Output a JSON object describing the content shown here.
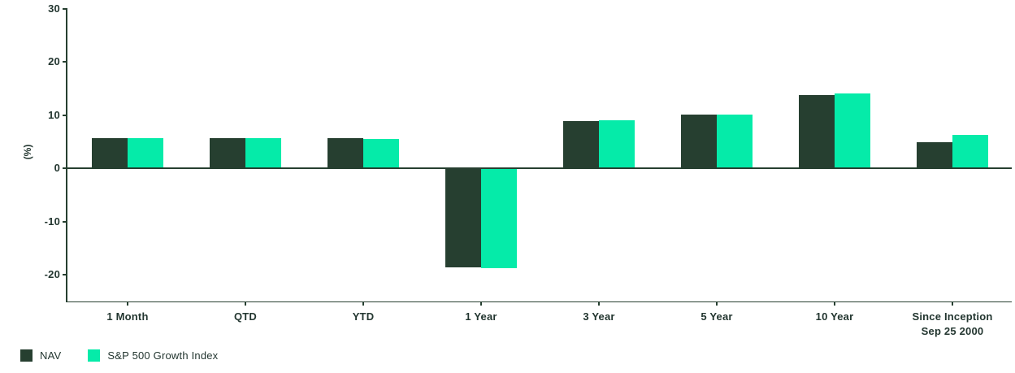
{
  "chart_data": {
    "type": "bar",
    "title": "",
    "ylabel": "(%)",
    "xlabel": "",
    "grid": false,
    "legend_position": "bottom-left",
    "ylim": [
      -25,
      30
    ],
    "yticks": [
      30,
      20,
      10,
      0,
      -10,
      -20
    ],
    "categories": [
      {
        "label": "1 Month",
        "sublabel": ""
      },
      {
        "label": "QTD",
        "sublabel": ""
      },
      {
        "label": "YTD",
        "sublabel": ""
      },
      {
        "label": "1 Year",
        "sublabel": ""
      },
      {
        "label": "3 Year",
        "sublabel": ""
      },
      {
        "label": "5 Year",
        "sublabel": ""
      },
      {
        "label": "10 Year",
        "sublabel": ""
      },
      {
        "label": "Since Inception",
        "sublabel": "Sep 25 2000"
      }
    ],
    "series": [
      {
        "name": "NAV",
        "color": "#263f30",
        "values": [
          5.5,
          5.5,
          5.5,
          -18.5,
          8.7,
          9.9,
          13.6,
          4.7
        ]
      },
      {
        "name": "S&P 500 Growth Index",
        "color": "#05eba9",
        "values": [
          5.5,
          5.5,
          5.4,
          -18.7,
          8.9,
          10.0,
          13.9,
          6.1
        ]
      }
    ]
  },
  "colors": {
    "axis": "#263f30",
    "text": "#233630",
    "background": "#ffffff"
  }
}
